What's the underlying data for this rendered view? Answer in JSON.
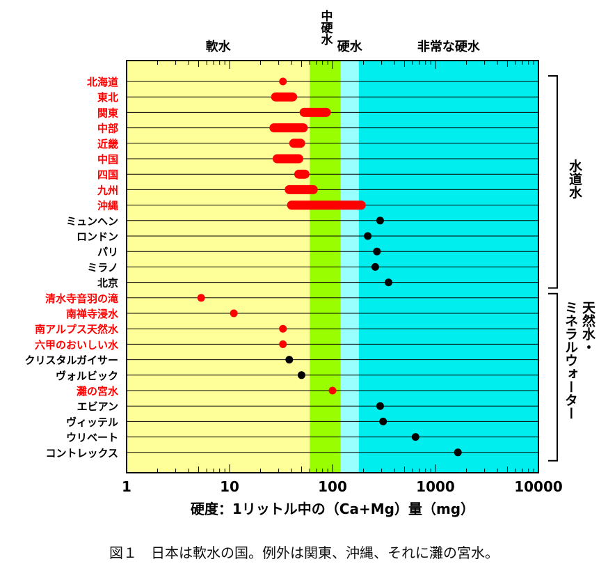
{
  "chart_data": {
    "type": "scatter",
    "x_scale": "log",
    "xlim": [
      1,
      10000
    ],
    "xlabel": "硬度：1リットル中の（Ca+Mg）量（mg）",
    "x_ticks": [
      "1",
      "10",
      "100",
      "1000",
      "10000"
    ],
    "zones": [
      {
        "label": "軟水",
        "from": 1,
        "to": 60,
        "color": "#ffff99"
      },
      {
        "label": "中硬水",
        "from": 60,
        "to": 120,
        "color": "#99ff00"
      },
      {
        "label": "硬水",
        "from": 120,
        "to": 180,
        "color": "#99ffff"
      },
      {
        "label": "非常な硬水",
        "from": 180,
        "to": 10000,
        "color": "#00eeee"
      }
    ],
    "groups": [
      {
        "label": "水道水",
        "first": "北海道",
        "last": "北京"
      },
      {
        "label": "天然水・ミネラルウォーター",
        "first": "清水寺音羽の滝",
        "last": "コントレックス"
      }
    ],
    "series_colors": {
      "japan": "#ff0000",
      "overseas": "#000000"
    },
    "rows": [
      {
        "label": "北海道",
        "region": "japan",
        "min": 33,
        "max": 33
      },
      {
        "label": "東北",
        "region": "japan",
        "min": 28,
        "max": 41
      },
      {
        "label": "関東",
        "region": "japan",
        "min": 53,
        "max": 87
      },
      {
        "label": "中部",
        "region": "japan",
        "min": 27,
        "max": 52
      },
      {
        "label": "近畿",
        "region": "japan",
        "min": 42,
        "max": 49
      },
      {
        "label": "中国",
        "region": "japan",
        "min": 29,
        "max": 47
      },
      {
        "label": "四国",
        "region": "japan",
        "min": 47,
        "max": 54
      },
      {
        "label": "九州",
        "region": "japan",
        "min": 38,
        "max": 65
      },
      {
        "label": "沖縄",
        "region": "japan",
        "min": 40,
        "max": 190
      },
      {
        "label": "ミュンヘン",
        "region": "overseas",
        "min": 290,
        "max": 290
      },
      {
        "label": "ロンドン",
        "region": "overseas",
        "min": 220,
        "max": 220
      },
      {
        "label": "パリ",
        "region": "overseas",
        "min": 270,
        "max": 270
      },
      {
        "label": "ミラノ",
        "region": "overseas",
        "min": 260,
        "max": 260
      },
      {
        "label": "北京",
        "region": "overseas",
        "min": 350,
        "max": 350
      },
      {
        "label": "清水寺音羽の滝",
        "region": "japan",
        "min": 5.3,
        "max": 5.3
      },
      {
        "label": "南禅寺浸水",
        "region": "japan",
        "min": 11,
        "max": 11
      },
      {
        "label": "南アルプス天然水",
        "region": "japan",
        "min": 33,
        "max": 33
      },
      {
        "label": "六甲のおいしい水",
        "region": "japan",
        "min": 33,
        "max": 33
      },
      {
        "label": "クリスタルガイサー",
        "region": "overseas",
        "min": 38,
        "max": 38
      },
      {
        "label": "ヴォルビック",
        "region": "overseas",
        "min": 50,
        "max": 50
      },
      {
        "label": "灘の宮水",
        "region": "japan",
        "min": 100,
        "max": 100
      },
      {
        "label": "エビアン",
        "region": "overseas",
        "min": 290,
        "max": 290
      },
      {
        "label": "ヴィッテル",
        "region": "overseas",
        "min": 310,
        "max": 310
      },
      {
        "label": "ウリベート",
        "region": "overseas",
        "min": 640,
        "max": 640
      },
      {
        "label": "コントレックス",
        "region": "overseas",
        "min": 1650,
        "max": 1650
      }
    ]
  },
  "caption": "図１　日本は軟水の国。例外は関東、沖縄、それに灘の宮水。"
}
